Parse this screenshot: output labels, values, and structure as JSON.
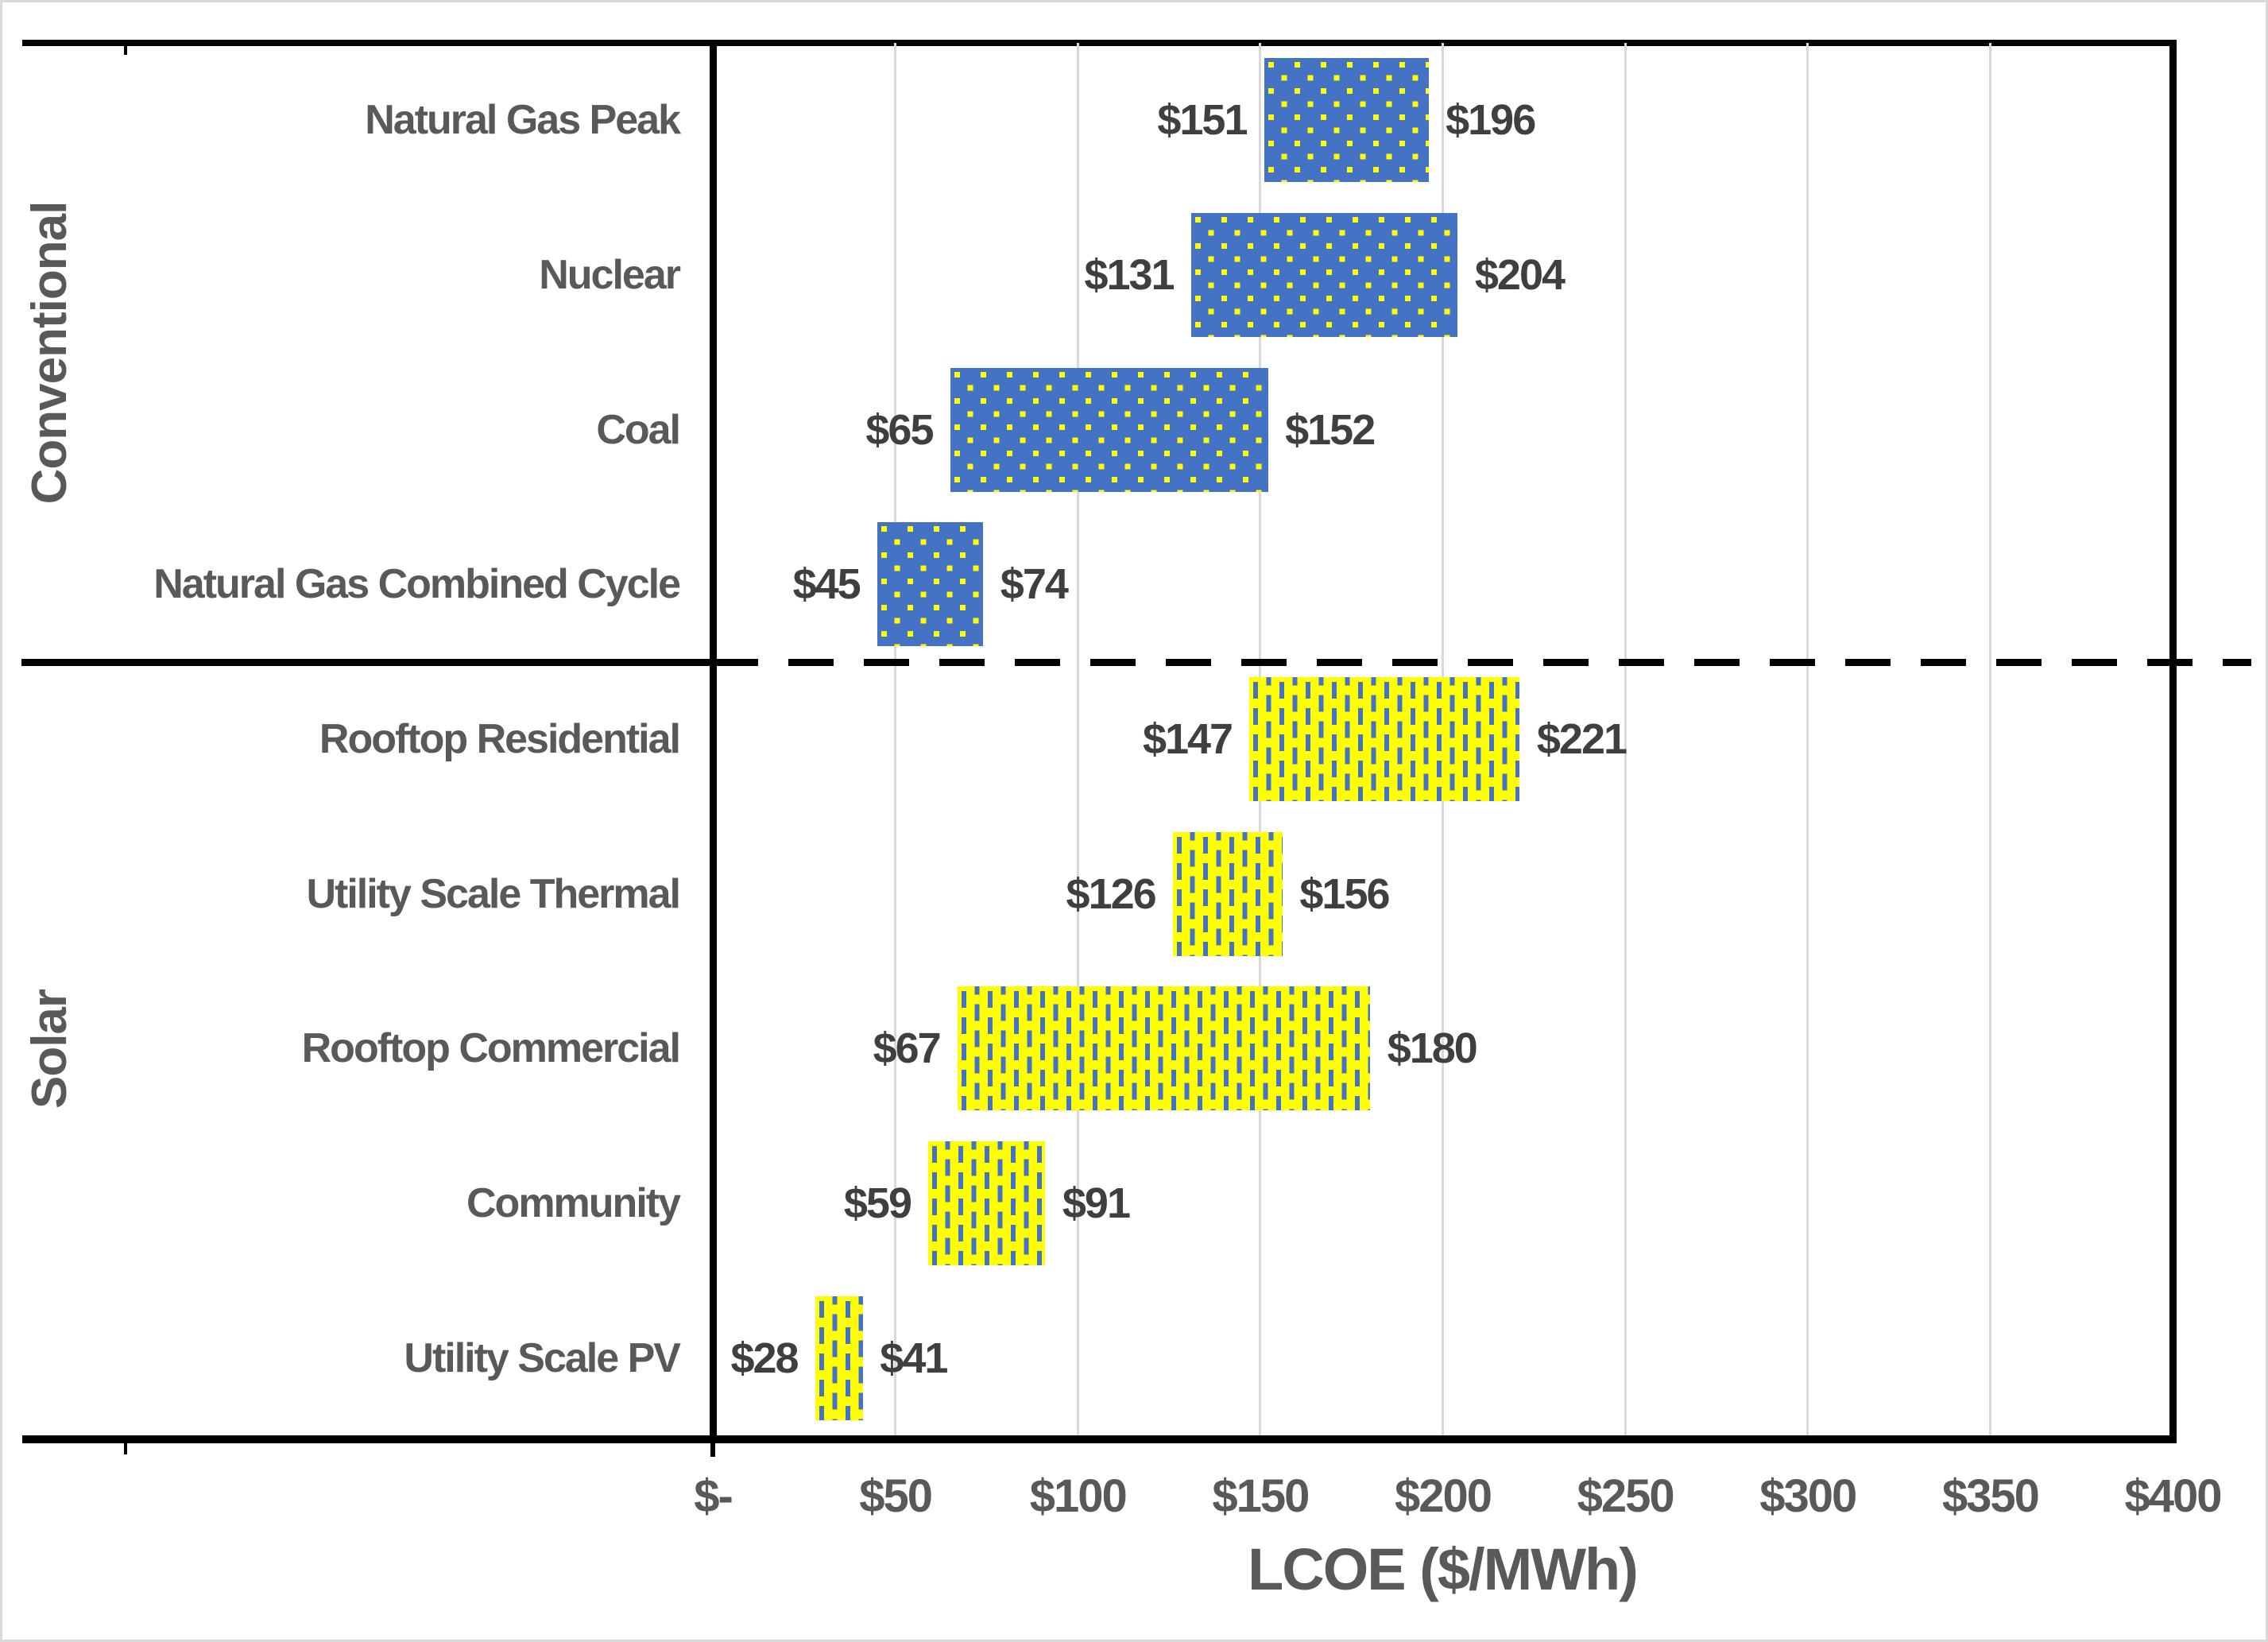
{
  "chart_data": {
    "type": "bar",
    "subtype": "horizontal-range",
    "title": "",
    "xlabel": "LCOE ($/MWh)",
    "ylabel": "",
    "xlim": [
      0,
      400
    ],
    "x_ticks": [
      0,
      50,
      100,
      150,
      200,
      250,
      300,
      350,
      400
    ],
    "x_tick_labels": [
      "$-",
      "$50",
      "$100",
      "$150",
      "$200",
      "$250",
      "$300",
      "$350",
      "$400"
    ],
    "grid": "vertical-gridlines-on",
    "legend": "none",
    "separator": {
      "style": "dashed-line",
      "between": [
        "Conventional",
        "Solar"
      ]
    },
    "groups": [
      {
        "name": "Conventional",
        "pattern": "blue fill with yellow square dots",
        "rows": [
          {
            "label": "Natural Gas Peak",
            "min": 151,
            "max": 196,
            "min_label": "$151",
            "max_label": "$196"
          },
          {
            "label": "Nuclear",
            "min": 131,
            "max": 204,
            "min_label": "$131",
            "max_label": "$204"
          },
          {
            "label": "Coal",
            "min": 65,
            "max": 152,
            "min_label": "$65",
            "max_label": "$152"
          },
          {
            "label": "Natural Gas Combined Cycle",
            "min": 45,
            "max": 74,
            "min_label": "$45",
            "max_label": "$74"
          }
        ]
      },
      {
        "name": "Solar",
        "pattern": "yellow fill with blue vertical dashes",
        "rows": [
          {
            "label": "Rooftop Residential",
            "min": 147,
            "max": 221,
            "min_label": "$147",
            "max_label": "$221"
          },
          {
            "label": "Utility Scale Thermal",
            "min": 126,
            "max": 156,
            "min_label": "$126",
            "max_label": "$156"
          },
          {
            "label": "Rooftop Commercial",
            "min": 67,
            "max": 180,
            "min_label": "$67",
            "max_label": "$180"
          },
          {
            "label": "Community",
            "min": 59,
            "max": 91,
            "min_label": "$59",
            "max_label": "$91"
          },
          {
            "label": "Utility Scale PV",
            "min": 28,
            "max": 41,
            "min_label": "$28",
            "max_label": "$41"
          }
        ]
      }
    ],
    "colors": {
      "conventional_fill": "#4472C4",
      "conventional_dot": "#FFFF00",
      "solar_fill": "#FFFF00",
      "solar_dash": "#4472C4",
      "text": "#595959",
      "value_text": "#3F3F3F",
      "gridline": "#D9D9D9",
      "axis": "#000000",
      "background": "#FFFFFF"
    }
  }
}
